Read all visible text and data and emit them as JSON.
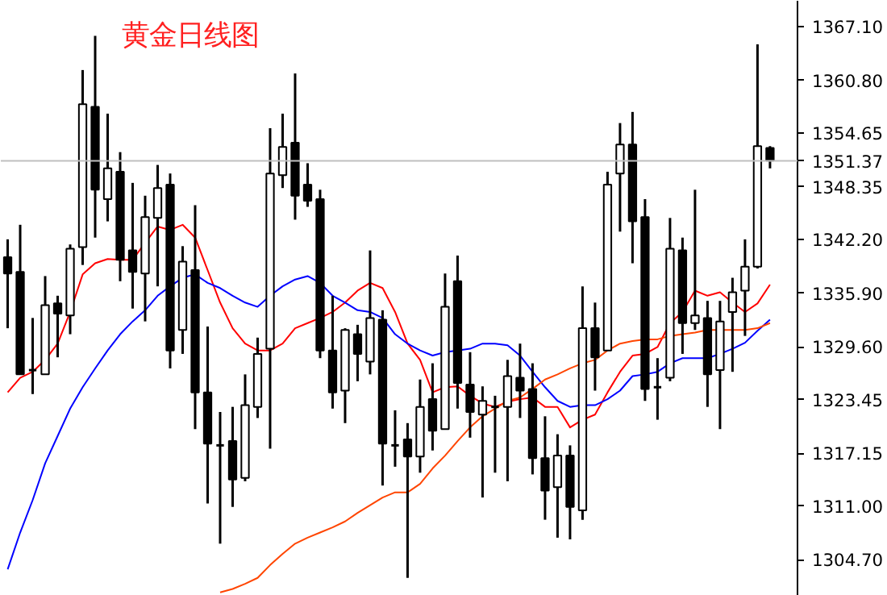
{
  "chart_data": {
    "type": "candlestick",
    "title": "黄金日线图",
    "categories": [
      null,
      null,
      null,
      null,
      null,
      null,
      null,
      null,
      null,
      null,
      null,
      null,
      null,
      null,
      null,
      null,
      null,
      null,
      null,
      null,
      null,
      null,
      null,
      null,
      null,
      null,
      null,
      null,
      null,
      null,
      null,
      null,
      null,
      null,
      null,
      null,
      null,
      null,
      null,
      null,
      null,
      null,
      null,
      null,
      null,
      null,
      null,
      null,
      null,
      null,
      null,
      null,
      null,
      null,
      null,
      null,
      null,
      null,
      null,
      null,
      null,
      null
    ],
    "ohlc": [
      [
        1340.1,
        1342.2,
        1331.8,
        1338.2
      ],
      [
        1338.4,
        1343.9,
        1326.4,
        1326.4
      ],
      [
        1326.9,
        1333.0,
        1324.1,
        1326.9
      ],
      [
        1326.4,
        1337.9,
        1326.4,
        1334.5
      ],
      [
        1334.7,
        1335.6,
        1328.4,
        1333.5
      ],
      [
        1333.3,
        1341.6,
        1331.1,
        1341.1
      ],
      [
        1341.3,
        1362.0,
        1339.2,
        1358.0
      ],
      [
        1357.7,
        1366.0,
        1342.4,
        1348.0
      ],
      [
        1346.9,
        1356.9,
        1344.3,
        1350.5
      ],
      [
        1350.1,
        1352.4,
        1337.3,
        1339.8
      ],
      [
        1340.9,
        1348.8,
        1334.1,
        1338.4
      ],
      [
        1338.2,
        1347.3,
        1332.6,
        1344.8
      ],
      [
        1344.7,
        1350.9,
        1336.7,
        1348.2
      ],
      [
        1348.6,
        1349.9,
        1327.1,
        1329.2
      ],
      [
        1331.6,
        1341.4,
        1328.8,
        1339.6
      ],
      [
        1338.6,
        1346.2,
        1320.0,
        1324.3
      ],
      [
        1324.3,
        1332.0,
        1311.3,
        1318.3
      ],
      [
        1318.1,
        1322.0,
        1306.6,
        1318.1
      ],
      [
        1318.6,
        1322.6,
        1310.9,
        1314.1
      ],
      [
        1314.3,
        1326.4,
        1313.9,
        1322.8
      ],
      [
        1322.6,
        1330.7,
        1321.3,
        1328.8
      ],
      [
        1329.4,
        1355.2,
        1317.7,
        1349.9
      ],
      [
        1349.7,
        1356.9,
        1348.2,
        1353.0
      ],
      [
        1353.5,
        1361.6,
        1344.5,
        1347.3
      ],
      [
        1348.6,
        1351.1,
        1346.0,
        1346.7
      ],
      [
        1346.9,
        1348.0,
        1328.3,
        1329.2
      ],
      [
        1329.2,
        1335.6,
        1322.4,
        1324.3
      ],
      [
        1324.5,
        1331.8,
        1320.7,
        1331.6
      ],
      [
        1331.1,
        1332.2,
        1325.6,
        1328.8
      ],
      [
        1327.9,
        1340.9,
        1326.4,
        1333.0
      ],
      [
        1332.8,
        1333.9,
        1313.4,
        1318.3
      ],
      [
        1318.1,
        1322.2,
        1315.6,
        1318.1
      ],
      [
        1318.8,
        1320.7,
        1302.6,
        1316.8
      ],
      [
        1316.8,
        1325.8,
        1314.9,
        1322.6
      ],
      [
        1323.5,
        1327.7,
        1317.5,
        1319.8
      ],
      [
        1320.0,
        1338.2,
        1320.0,
        1334.3
      ],
      [
        1337.3,
        1340.3,
        1322.4,
        1325.4
      ],
      [
        1325.2,
        1329.0,
        1319.0,
        1322.0
      ],
      [
        1321.7,
        1325.0,
        1312.0,
        1323.3
      ],
      [
        1322.6,
        1323.9,
        1314.9,
        1322.6
      ],
      [
        1322.6,
        1328.1,
        1313.9,
        1326.2
      ],
      [
        1326.0,
        1330.0,
        1321.3,
        1324.5
      ],
      [
        1324.7,
        1327.7,
        1314.7,
        1316.6
      ],
      [
        1316.6,
        1321.5,
        1309.4,
        1312.8
      ],
      [
        1313.2,
        1319.4,
        1307.3,
        1316.9
      ],
      [
        1316.9,
        1318.1,
        1307.1,
        1310.9
      ],
      [
        1310.5,
        1336.7,
        1309.4,
        1331.8
      ],
      [
        1331.8,
        1334.8,
        1324.5,
        1328.4
      ],
      [
        1329.2,
        1350.1,
        1329.2,
        1348.6
      ],
      [
        1349.9,
        1355.8,
        1343.1,
        1353.3
      ],
      [
        1353.3,
        1357.1,
        1339.4,
        1344.3
      ],
      [
        1344.8,
        1346.9,
        1323.3,
        1324.7
      ],
      [
        1324.9,
        1328.3,
        1321.1,
        1324.9
      ],
      [
        1326.0,
        1344.7,
        1325.6,
        1341.1
      ],
      [
        1340.9,
        1342.4,
        1328.8,
        1332.4
      ],
      [
        1332.4,
        1348.0,
        1331.6,
        1333.3
      ],
      [
        1333.0,
        1335.0,
        1322.6,
        1326.4
      ],
      [
        1326.9,
        1335.0,
        1320.0,
        1332.6
      ],
      [
        1333.7,
        1337.7,
        1326.7,
        1336.0
      ],
      [
        1336.2,
        1342.2,
        1330.9,
        1339.0
      ],
      [
        1339.0,
        1365.0,
        1338.8,
        1353.1
      ],
      [
        1352.9,
        1353.1,
        1350.5,
        1351.4
      ]
    ],
    "series": [
      {
        "type": "line",
        "color": "#ff0000",
        "values": [
          1324.3,
          1326.0,
          1326.7,
          1328.1,
          1330.0,
          1333.7,
          1338.1,
          1339.4,
          1339.9,
          1339.8,
          1339.8,
          1341.8,
          1343.7,
          1343.3,
          1343.9,
          1342.4,
          1338.6,
          1334.8,
          1331.8,
          1330.0,
          1329.2,
          1329.2,
          1330.0,
          1331.8,
          1332.4,
          1333.0,
          1333.7,
          1334.8,
          1336.2,
          1337.1,
          1336.5,
          1333.7,
          1330.0,
          1328.1,
          1324.3,
          1324.9,
          1325.0,
          1323.9,
          1323.0,
          1322.6,
          1323.2,
          1323.5,
          1323.7,
          1322.6,
          1322.6,
          1320.2,
          1321.1,
          1321.7,
          1324.3,
          1326.7,
          1328.6,
          1328.8,
          1329.6,
          1332.4,
          1333.7,
          1336.2,
          1335.6,
          1336.0,
          1334.8,
          1333.7,
          1334.7,
          1336.9
        ]
      },
      {
        "type": "line",
        "color": "#0000ff",
        "values": [
          1303.6,
          1307.9,
          1311.7,
          1316.0,
          1319.2,
          1322.4,
          1324.9,
          1327.1,
          1329.2,
          1331.1,
          1332.6,
          1333.9,
          1335.6,
          1336.7,
          1337.7,
          1338.1,
          1337.1,
          1336.5,
          1335.6,
          1334.8,
          1334.3,
          1335.6,
          1336.7,
          1337.5,
          1337.9,
          1337.1,
          1335.6,
          1334.8,
          1333.9,
          1333.7,
          1333.0,
          1331.1,
          1330.0,
          1329.2,
          1328.6,
          1329.0,
          1329.2,
          1329.4,
          1330.0,
          1330.0,
          1329.8,
          1328.6,
          1326.7,
          1324.9,
          1323.3,
          1322.6,
          1322.8,
          1322.8,
          1323.5,
          1324.5,
          1326.2,
          1326.4,
          1326.7,
          1327.7,
          1328.3,
          1328.3,
          1328.3,
          1328.8,
          1329.4,
          1330.1,
          1331.5,
          1332.8
        ]
      },
      {
        "type": "line",
        "color": "#ff4500",
        "values": [
          null,
          null,
          null,
          null,
          null,
          null,
          null,
          null,
          null,
          null,
          null,
          null,
          null,
          null,
          null,
          null,
          null,
          1300.9,
          1301.3,
          1301.9,
          1302.6,
          1304.1,
          1305.4,
          1306.6,
          1307.3,
          1307.9,
          1308.5,
          1309.2,
          1310.2,
          1311.1,
          1312.0,
          1312.6,
          1312.6,
          1313.6,
          1315.4,
          1316.9,
          1318.6,
          1320.2,
          1321.5,
          1322.4,
          1323.3,
          1323.7,
          1324.7,
          1325.8,
          1326.4,
          1327.1,
          1327.7,
          1328.1,
          1329.2,
          1330.0,
          1330.3,
          1330.5,
          1330.5,
          1330.9,
          1331.1,
          1331.3,
          1331.6,
          1331.6,
          1331.6,
          1331.6,
          1331.8,
          1332.4
        ]
      }
    ],
    "ylim": [
      1300.5,
      1370.1
    ],
    "yticks": [
      {
        "value": 1367.1,
        "label": "1367.10"
      },
      {
        "value": 1360.8,
        "label": "1360.80"
      },
      {
        "value": 1354.65,
        "label": "1354.65"
      },
      {
        "value": 1348.35,
        "label": "1348.35"
      },
      {
        "value": 1342.2,
        "label": "1342.20"
      },
      {
        "value": 1335.9,
        "label": "1335.90"
      },
      {
        "value": 1329.6,
        "label": "1329.60"
      },
      {
        "value": 1323.45,
        "label": "1323.45"
      },
      {
        "value": 1317.15,
        "label": "1317.15"
      },
      {
        "value": 1311.0,
        "label": "1311.00"
      },
      {
        "value": 1304.7,
        "label": "1304.70"
      }
    ],
    "tick_labels": "y",
    "ref_lines": [
      {
        "axis": "y",
        "value": 1351.37,
        "label": "1351.37",
        "color": "#c0c0c0"
      }
    ],
    "grid": false
  }
}
